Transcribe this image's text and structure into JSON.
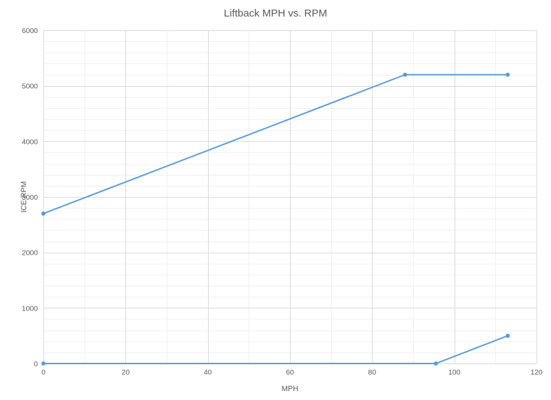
{
  "chart_data": {
    "type": "scatter",
    "title": "Liftback MPH vs. RPM",
    "xlabel": "MPH",
    "ylabel": "ICE RPM",
    "xlim": [
      0,
      120
    ],
    "ylim": [
      0,
      6000
    ],
    "x_ticks": [
      0,
      20,
      40,
      60,
      80,
      100,
      120
    ],
    "y_ticks": [
      0,
      1000,
      2000,
      3000,
      4000,
      5000,
      6000
    ],
    "x_minor_step": 10,
    "y_minor_step": 200,
    "grid": true,
    "series": [
      {
        "color": "#5b9bd5",
        "x": [
          0,
          88,
          113
        ],
        "y": [
          2700,
          5200,
          5200
        ]
      },
      {
        "color": "#5b9bd5",
        "x": [
          0,
          95.5,
          113
        ],
        "y": [
          0,
          0,
          500
        ]
      }
    ]
  }
}
